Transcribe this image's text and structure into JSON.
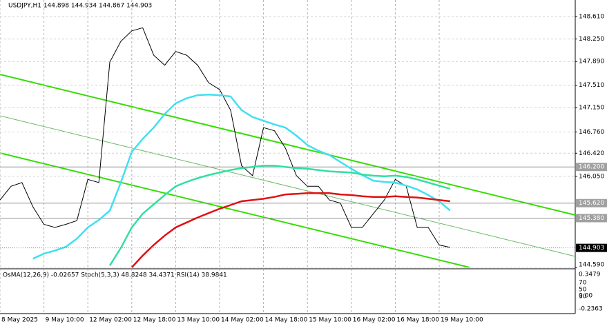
{
  "chart_data": {
    "type": "line",
    "title": "USDJPY,H1  144.898 144.934 144.867 144.903",
    "indicator_title": "OsMA(12,26,9) -0.02657  Stoch(5,3,3) 48.8248 34.4371  RSI(14) 38.9841",
    "indicator_ticks": [
      "0.3479",
      "70",
      "50",
      "30",
      "0.00",
      "-0.2363"
    ],
    "categories": [
      "8 May 2025",
      null,
      null,
      null,
      "9 May 10:00",
      null,
      null,
      null,
      "12 May 02:00",
      null,
      null,
      null,
      "12 May 18:00",
      null,
      null,
      null,
      "13 May 10:00",
      null,
      null,
      null,
      "14 May 02:00",
      null,
      null,
      null,
      "14 May 18:00",
      null,
      null,
      null,
      "15 May 10:00",
      null,
      null,
      null,
      "16 May 02:00",
      null,
      null,
      null,
      "16 May 18:00",
      null,
      null,
      null,
      "19 May 10:00",
      null
    ],
    "series": [
      {
        "color": "#000000",
        "values": [
          145.67,
          145.89,
          145.95,
          145.56,
          145.28,
          145.23,
          145.28,
          145.34,
          146.0,
          145.95,
          147.88,
          148.21,
          148.38,
          148.43,
          147.99,
          147.83,
          148.05,
          147.99,
          147.83,
          147.55,
          147.44,
          147.11,
          146.22,
          146.06,
          146.83,
          146.78,
          146.5,
          146.06,
          145.89,
          145.89,
          145.67,
          145.62,
          145.23,
          145.23,
          145.45,
          145.67,
          146.0,
          145.89,
          145.23,
          145.23,
          144.95,
          144.91
        ]
      },
      {
        "color": "#3fe0f0",
        "values": [
          null,
          null,
          null,
          144.73,
          144.81,
          144.86,
          144.92,
          145.05,
          145.23,
          145.35,
          145.5,
          145.95,
          146.44,
          146.65,
          146.83,
          147.05,
          147.22,
          147.3,
          147.35,
          147.36,
          147.35,
          147.33,
          147.11,
          147.0,
          146.94,
          146.88,
          146.83,
          146.7,
          146.55,
          146.46,
          146.39,
          146.28,
          146.17,
          146.07,
          145.98,
          145.96,
          145.95,
          145.9,
          145.84,
          145.75,
          145.65,
          145.5
        ]
      },
      {
        "color": "#30e0a0",
        "values": [
          null,
          null,
          null,
          null,
          null,
          null,
          null,
          null,
          null,
          null,
          144.62,
          144.9,
          145.23,
          145.45,
          145.6,
          145.75,
          145.89,
          145.96,
          146.02,
          146.07,
          146.11,
          146.15,
          146.18,
          146.2,
          146.22,
          146.22,
          146.2,
          146.18,
          146.17,
          146.15,
          146.13,
          146.12,
          146.11,
          146.08,
          146.06,
          146.05,
          146.06,
          146.04,
          146.0,
          145.95,
          145.9,
          145.85
        ]
      },
      {
        "color": "#e01010",
        "values": [
          null,
          null,
          null,
          null,
          null,
          null,
          null,
          null,
          null,
          null,
          null,
          null,
          144.59,
          144.78,
          144.95,
          145.1,
          145.23,
          145.31,
          145.39,
          145.46,
          145.53,
          145.59,
          145.65,
          145.67,
          145.69,
          145.72,
          145.76,
          145.77,
          145.78,
          145.78,
          145.78,
          145.76,
          145.75,
          145.73,
          145.72,
          145.72,
          145.73,
          145.72,
          145.71,
          145.69,
          145.67,
          145.65
        ]
      }
    ],
    "ylim": [
      144.59,
      148.875
    ],
    "yticks": [
      {
        "value": 148.61,
        "label": "148.610"
      },
      {
        "value": 148.25,
        "label": "148.250"
      },
      {
        "value": 147.89,
        "label": "147.890"
      },
      {
        "value": 147.51,
        "label": "147.510"
      },
      {
        "value": 147.15,
        "label": "147.150"
      },
      {
        "value": 146.76,
        "label": "146.760"
      },
      {
        "value": 146.42,
        "label": "146.420"
      },
      {
        "value": 146.05,
        "label": "146.050"
      },
      {
        "value": 144.59,
        "label": "144.590"
      }
    ],
    "levels": [
      {
        "value": 146.2,
        "label": "146.200"
      },
      {
        "value": 145.62,
        "label": "145.620"
      },
      {
        "value": 145.38,
        "label": "145.380"
      }
    ],
    "last": {
      "value": 144.903,
      "label": "144.903"
    },
    "grid": true
  }
}
